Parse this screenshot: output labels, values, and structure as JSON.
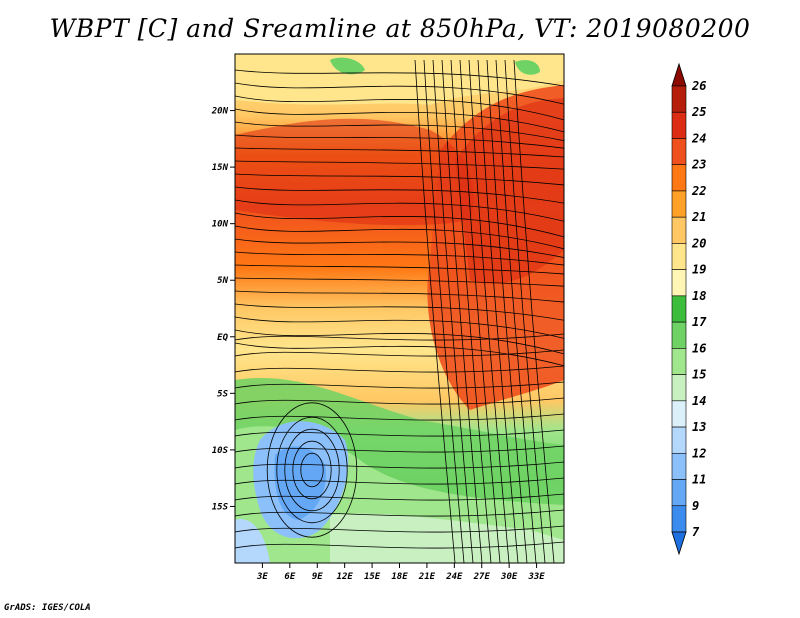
{
  "title": "WBPT [C] and Sreamline at 850hPa, VT: 2019080200",
  "credit": "GrADS: IGES/COLA",
  "map": {
    "lat_labels": [
      "20N",
      "15N",
      "10N",
      "5N",
      "EQ",
      "5S",
      "10S",
      "15S"
    ],
    "lat_values": [
      20,
      15,
      10,
      5,
      0,
      -5,
      -10,
      -15
    ],
    "lon_labels": [
      "3E",
      "6E",
      "9E",
      "12E",
      "15E",
      "18E",
      "21E",
      "24E",
      "27E",
      "30E",
      "33E"
    ],
    "lon_values": [
      3,
      6,
      9,
      12,
      15,
      18,
      21,
      24,
      27,
      30,
      33
    ],
    "lon_range": [
      0,
      36
    ],
    "lat_range": [
      -20,
      25
    ]
  },
  "colorbar": {
    "levels": [
      "7",
      "9",
      "11",
      "12",
      "13",
      "14",
      "15",
      "16",
      "17",
      "18",
      "19",
      "20",
      "21",
      "22",
      "23",
      "24",
      "25",
      "26"
    ],
    "colors": [
      "#1e6fe0",
      "#3c8cf0",
      "#64a8f5",
      "#8cc0fa",
      "#b4d7fc",
      "#dcf0fa",
      "#c8f0c0",
      "#a0e68c",
      "#6ed264",
      "#3cbe3c",
      "#fff5b4",
      "#ffe68c",
      "#ffc864",
      "#ffa028",
      "#ff7814",
      "#f0501e",
      "#dc2d14",
      "#b41e0a",
      "#8c0a00"
    ]
  }
}
